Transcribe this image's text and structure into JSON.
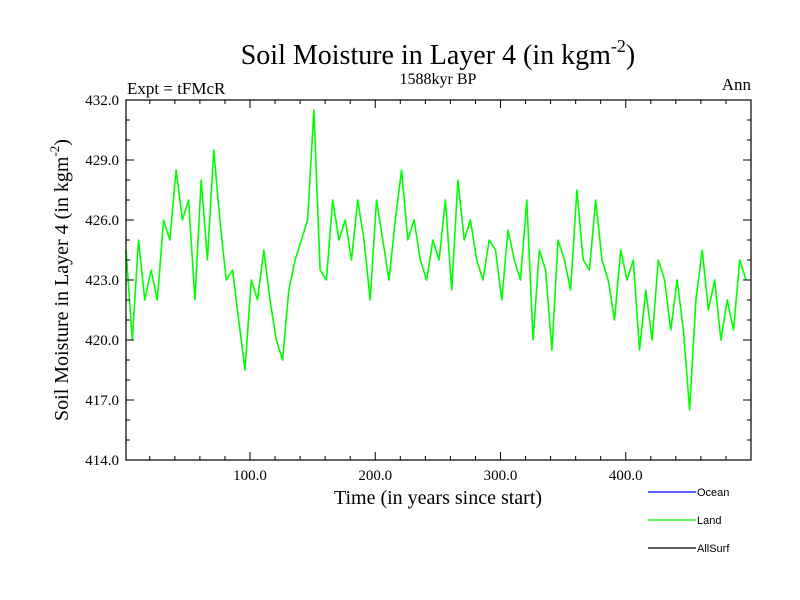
{
  "chart_data": {
    "type": "line",
    "title_main": "Soil Moisture in Layer 4 (in kgm",
    "title_sup": "-2",
    "title_close": ")",
    "subtitle": "1588kyr BP",
    "left_label": "Expt = tFMcR",
    "right_label": "Ann",
    "xlabel": "Time (in years since start)",
    "ylabel_main": "Soil Moisture in Layer 4 (in kgm",
    "ylabel_sup": "-2",
    "ylabel_close": ")",
    "xlim": [
      1,
      500
    ],
    "ylim": [
      414.0,
      432.0
    ],
    "x_ticks": [
      100,
      200,
      300,
      400
    ],
    "x_tick_labels": [
      "100.0",
      "200.0",
      "300.0",
      "400.0"
    ],
    "y_ticks": [
      414,
      417,
      420,
      423,
      426,
      429,
      432
    ],
    "y_tick_labels": [
      "414.0",
      "417.0",
      "420.0",
      "423.0",
      "426.0",
      "429.0",
      "432.0"
    ],
    "series": [
      {
        "name": "Land",
        "color": "#00ff00",
        "x_start": 1,
        "x_step": 5,
        "values": [
          424.5,
          420.0,
          425.0,
          422.0,
          423.5,
          422.0,
          426.0,
          425.0,
          428.5,
          426.0,
          427.0,
          422.0,
          428.0,
          424.0,
          429.5,
          426.0,
          423.0,
          423.5,
          421.0,
          418.5,
          423.0,
          422.0,
          424.5,
          422.0,
          420.0,
          419.0,
          422.5,
          424.0,
          425.0,
          426.0,
          431.5,
          423.5,
          423.0,
          427.0,
          425.0,
          426.0,
          424.0,
          427.0,
          425.0,
          422.0,
          427.0,
          425.0,
          423.0,
          426.0,
          428.5,
          425.0,
          426.0,
          424.0,
          423.0,
          425.0,
          424.0,
          427.0,
          422.5,
          428.0,
          425.0,
          426.0,
          424.0,
          423.0,
          425.0,
          424.5,
          422.0,
          425.5,
          424.0,
          423.0,
          427.0,
          420.0,
          424.5,
          423.5,
          419.5,
          425.0,
          424.0,
          422.5,
          427.5,
          424.0,
          423.5,
          427.0,
          424.0,
          423.0,
          421.0,
          424.5,
          423.0,
          424.0,
          419.5,
          422.5,
          420.0,
          424.0,
          423.0,
          420.5,
          423.0,
          420.5,
          416.5,
          422.0,
          424.5,
          421.5,
          423.0,
          420.0,
          422.0,
          420.5,
          424.0,
          423.0
        ]
      }
    ],
    "legend": [
      {
        "label": "Ocean",
        "color": "#0000ff"
      },
      {
        "label": "Land",
        "color": "#00ff00"
      },
      {
        "label": "AllSurf",
        "color": "#000000"
      }
    ]
  }
}
